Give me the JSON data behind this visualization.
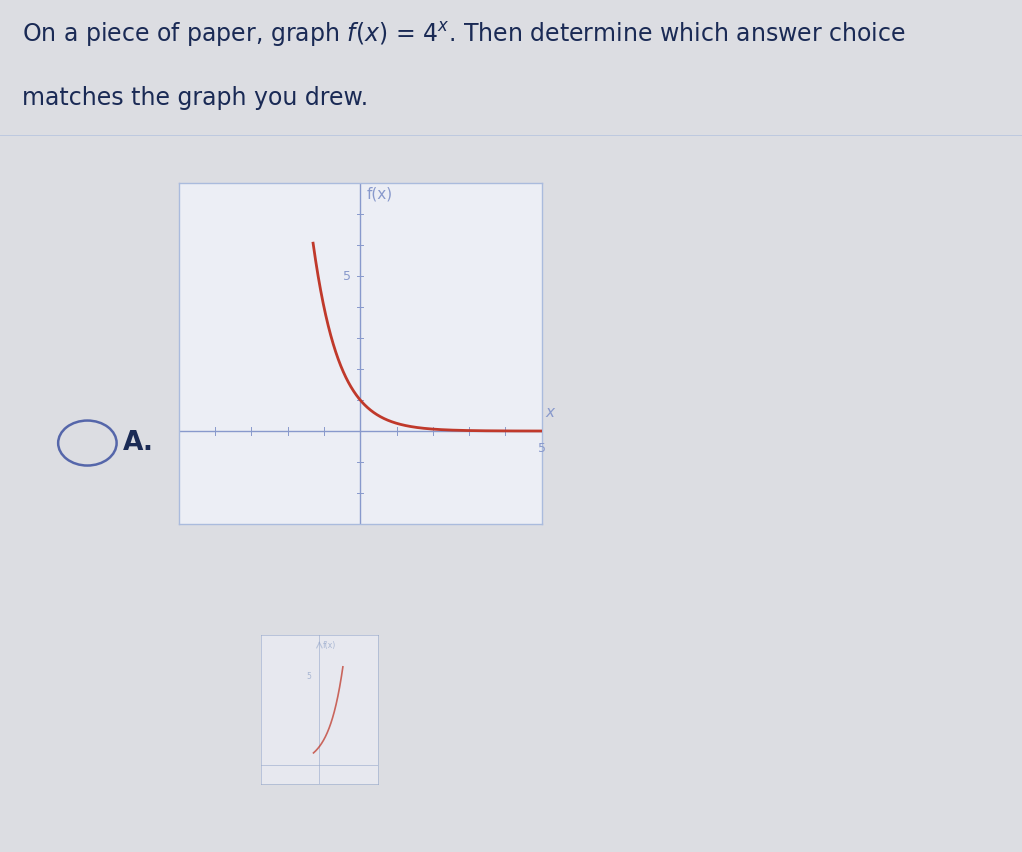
{
  "background_color": "#dcdde2",
  "paper_color": "#e8e9ee",
  "graph_bg_color": "#eceef5",
  "curve_color": "#c0392b",
  "axis_color": "#8899cc",
  "box_color": "#aabbdd",
  "xlim": [
    -5,
    5
  ],
  "ylim": [
    -3,
    8
  ],
  "x_label": "x",
  "y_label": "f(x)",
  "title_fontsize": 17,
  "label_fontsize": 11,
  "tick_fontsize": 9,
  "bottom_bar_color": "#4ec8d8",
  "radio_color": "#5566aa",
  "answer_color": "#1a2a55",
  "second_graph_curve_color": "#c0392b",
  "second_axis_color": "#99aacc"
}
